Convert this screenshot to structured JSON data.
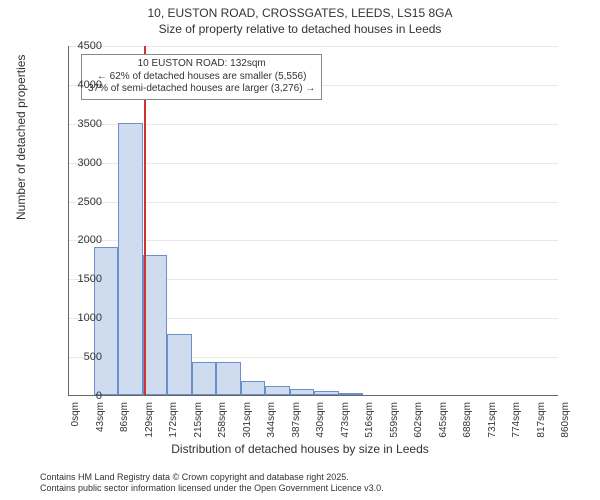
{
  "title_line1": "10, EUSTON ROAD, CROSSGATES, LEEDS, LS15 8GA",
  "title_line2": "Size of property relative to detached houses in Leeds",
  "chart": {
    "type": "histogram",
    "x_label": "Distribution of detached houses by size in Leeds",
    "y_label": "Number of detached properties",
    "ylim": [
      0,
      4500
    ],
    "ytick_step": 500,
    "y_ticks": [
      0,
      500,
      1000,
      1500,
      2000,
      2500,
      3000,
      3500,
      4000,
      4500
    ],
    "x_tick_labels": [
      "0sqm",
      "43sqm",
      "86sqm",
      "129sqm",
      "172sqm",
      "215sqm",
      "258sqm",
      "301sqm",
      "344sqm",
      "387sqm",
      "430sqm",
      "473sqm",
      "516sqm",
      "559sqm",
      "602sqm",
      "645sqm",
      "688sqm",
      "731sqm",
      "774sqm",
      "817sqm",
      "860sqm"
    ],
    "bar_values": [
      0,
      1900,
      3500,
      1800,
      780,
      420,
      420,
      180,
      120,
      80,
      50,
      30,
      0,
      0,
      0,
      0,
      0,
      0,
      0,
      0
    ],
    "bar_fill": "#cfdcf0",
    "bar_stroke": "#6b8fc9",
    "grid_color": "#e8e8e8",
    "background": "#ffffff",
    "marker": {
      "position_sqm": 132,
      "range_max_sqm": 860,
      "color": "#cc3333"
    },
    "annotation": {
      "line1": "10 EUSTON ROAD: 132sqm",
      "line2": "← 62% of detached houses are smaller (5,556)",
      "line3": "37% of semi-detached houses are larger (3,276) →",
      "border_color": "#888888",
      "background": "#ffffff",
      "fontsize": 10
    }
  },
  "footer_line1": "Contains HM Land Registry data © Crown copyright and database right 2025.",
  "footer_line2": "Contains public sector information licensed under the Open Government Licence v3.0."
}
